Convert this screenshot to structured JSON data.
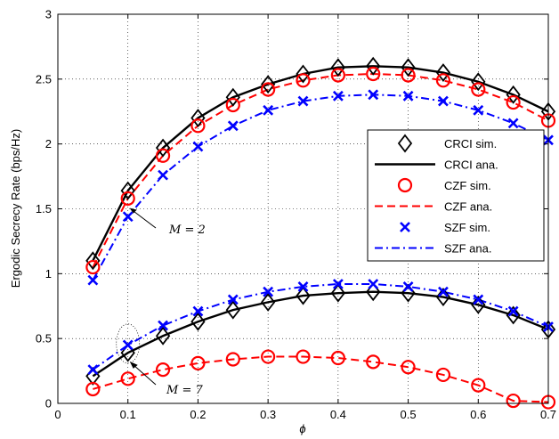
{
  "chart_data": {
    "type": "line",
    "xlabel": "ϕ",
    "ylabel": "Ergodic Secrecy Rate (bps/Hz)",
    "xlim": [
      0,
      0.7
    ],
    "ylim": [
      0,
      3
    ],
    "x_ticks": [
      "0",
      "0.1",
      "0.2",
      "0.3",
      "0.4",
      "0.5",
      "0.6",
      "0.7"
    ],
    "y_ticks": [
      "0",
      "0.5",
      "1",
      "1.5",
      "2",
      "2.5",
      "3"
    ],
    "grid": "dotted",
    "legend_position": "right",
    "x": [
      0.05,
      0.1,
      0.15,
      0.2,
      0.25,
      0.3,
      0.35,
      0.4,
      0.45,
      0.5,
      0.55,
      0.6,
      0.65,
      0.7
    ],
    "groups": [
      {
        "annotation": "M = 2",
        "series": [
          {
            "name": "CRCI sim.",
            "values": [
              1.1,
              1.64,
              1.97,
              2.2,
              2.36,
              2.46,
              2.54,
              2.59,
              2.6,
              2.59,
              2.55,
              2.48,
              2.38,
              2.25
            ]
          },
          {
            "name": "CRCI ana.",
            "values": [
              1.1,
              1.64,
              1.97,
              2.2,
              2.36,
              2.46,
              2.54,
              2.59,
              2.6,
              2.59,
              2.55,
              2.48,
              2.38,
              2.25
            ]
          },
          {
            "name": "CZF sim.",
            "values": [
              1.05,
              1.58,
              1.91,
              2.14,
              2.3,
              2.42,
              2.49,
              2.53,
              2.54,
              2.53,
              2.49,
              2.42,
              2.32,
              2.18
            ]
          },
          {
            "name": "CZF ana.",
            "values": [
              1.05,
              1.58,
              1.91,
              2.14,
              2.3,
              2.42,
              2.49,
              2.53,
              2.54,
              2.53,
              2.49,
              2.42,
              2.32,
              2.18
            ]
          },
          {
            "name": "SZF sim.",
            "values": [
              0.95,
              1.44,
              1.76,
              1.98,
              2.14,
              2.26,
              2.33,
              2.37,
              2.38,
              2.37,
              2.33,
              2.26,
              2.16,
              2.03
            ]
          },
          {
            "name": "SZF ana.",
            "values": [
              0.95,
              1.44,
              1.76,
              1.98,
              2.14,
              2.26,
              2.33,
              2.37,
              2.38,
              2.37,
              2.33,
              2.26,
              2.16,
              2.03
            ]
          }
        ]
      },
      {
        "annotation": "M = 7",
        "series": [
          {
            "name": "CRCI sim.",
            "values": [
              0.21,
              0.39,
              0.52,
              0.63,
              0.72,
              0.78,
              0.83,
              0.85,
              0.86,
              0.85,
              0.82,
              0.76,
              0.68,
              0.57
            ]
          },
          {
            "name": "CRCI ana.",
            "values": [
              0.21,
              0.39,
              0.52,
              0.63,
              0.72,
              0.78,
              0.83,
              0.85,
              0.86,
              0.85,
              0.82,
              0.76,
              0.68,
              0.57
            ]
          },
          {
            "name": "CZF sim.",
            "values": [
              0.11,
              0.19,
              0.26,
              0.31,
              0.34,
              0.36,
              0.36,
              0.35,
              0.32,
              0.28,
              0.22,
              0.14,
              0.02,
              0.01
            ]
          },
          {
            "name": "CZF ana.",
            "values": [
              0.11,
              0.19,
              0.26,
              0.31,
              0.34,
              0.36,
              0.36,
              0.35,
              0.32,
              0.28,
              0.22,
              0.14,
              0.02,
              0.01
            ]
          },
          {
            "name": "SZF sim.",
            "values": [
              0.26,
              0.45,
              0.6,
              0.71,
              0.8,
              0.86,
              0.9,
              0.92,
              0.92,
              0.9,
              0.86,
              0.8,
              0.71,
              0.59
            ]
          },
          {
            "name": "SZF ana.",
            "values": [
              0.26,
              0.45,
              0.6,
              0.71,
              0.8,
              0.86,
              0.9,
              0.92,
              0.92,
              0.9,
              0.86,
              0.8,
              0.71,
              0.59
            ]
          }
        ]
      }
    ],
    "annotations": [
      {
        "text": "M = 2",
        "points_to": {
          "x": 0.1,
          "y": 1.52
        }
      },
      {
        "text": "M = 7",
        "points_to": {
          "x": 0.1,
          "y": 0.42
        }
      }
    ],
    "legend": [
      {
        "label": "CRCI sim.",
        "marker": "diamond",
        "color": "#000000"
      },
      {
        "label": "CRCI ana.",
        "line": "solid",
        "color": "#000000"
      },
      {
        "label": "CZF sim.",
        "marker": "circle",
        "color": "#ff0000"
      },
      {
        "label": "CZF ana.",
        "line": "dashed",
        "color": "#ff0000"
      },
      {
        "label": "SZF sim.",
        "marker": "cross",
        "color": "#0000ff"
      },
      {
        "label": "SZF ana.",
        "line": "dashdot",
        "color": "#0000ff"
      }
    ]
  }
}
